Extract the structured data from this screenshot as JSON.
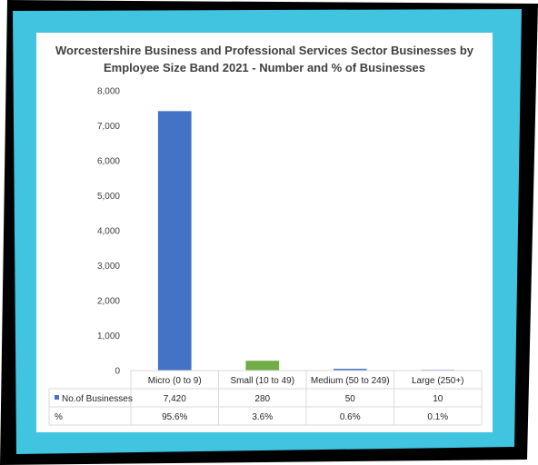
{
  "colors": {
    "frame_blue": "#40c4e0",
    "frame_black": "#000000",
    "micro_bar": "#4472c4",
    "small_bar": "#70ad47",
    "medium_bar": "#4472c4",
    "large_bar": "#4472c4",
    "legend_marker": "#4472c4",
    "grid": "#d9d9d9"
  },
  "chart_data": {
    "type": "bar",
    "title_lines": [
      "Worcestershire Business and Professional Services Sector Businesses by",
      "Employee Size Band 2021 - Number and % of Businesses"
    ],
    "categories": [
      "Micro (0 to 9)",
      "Small (10 to 49)",
      "Medium (50 to 249)",
      "Large (250+)"
    ],
    "series": [
      {
        "name": "No.of Businesses",
        "values": [
          7420,
          280,
          50,
          10
        ],
        "display": [
          "7,420",
          "280",
          "50",
          "10"
        ]
      }
    ],
    "table_rows": [
      {
        "label": "No.of Businesses",
        "values": [
          "7,420",
          "280",
          "50",
          "10"
        ]
      },
      {
        "label": "%",
        "values": [
          "95.6%",
          "3.6%",
          "0.6%",
          "0.1%"
        ]
      }
    ],
    "ylim": [
      0,
      8000
    ],
    "yticks": [
      0,
      1000,
      2000,
      3000,
      4000,
      5000,
      6000,
      7000,
      8000
    ],
    "ytick_labels": [
      "0",
      "1,000",
      "2,000",
      "3,000",
      "4,000",
      "5,000",
      "6,000",
      "7,000",
      "8,000"
    ],
    "grid": false,
    "legend": "data-table"
  }
}
